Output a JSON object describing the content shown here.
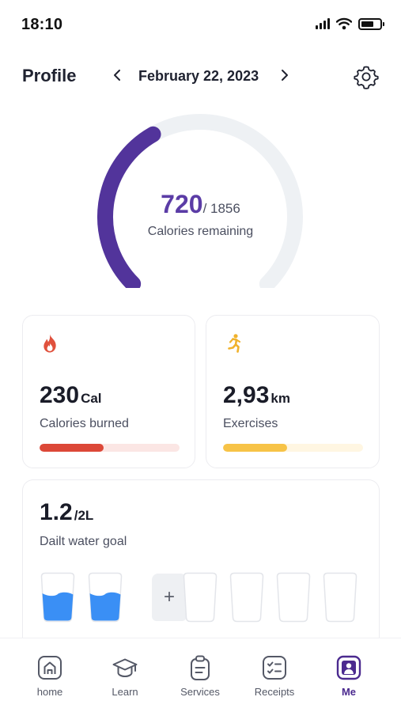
{
  "status_bar": {
    "time": "18:10"
  },
  "header": {
    "title": "Profile",
    "date": "February 22, 2023"
  },
  "calories": {
    "remaining": "720",
    "total": "/ 1856",
    "caption": "Calories remaining",
    "progress_fraction": 0.39,
    "accent": "#52349b",
    "track": "#eef1f4"
  },
  "cards": {
    "burned": {
      "value": "230",
      "unit": "Cal",
      "label": "Calories burned",
      "progress_fraction": 0.46,
      "color": "#dc4838",
      "track": "#fbe6e4",
      "icon": "flame-icon"
    },
    "exercises": {
      "value": "2,93",
      "unit": "km",
      "label": "Exercises",
      "progress_fraction": 0.46,
      "color": "#f7c347",
      "track": "#fff6e2",
      "icon": "running-icon"
    }
  },
  "water": {
    "value": "1.2",
    "unit": "/2L",
    "label": "Dailt water goal",
    "add_symbol": "+",
    "cups_filled": 2,
    "cups_empty": 4,
    "fill_color": "#3a8ff5"
  },
  "nav": {
    "items": [
      {
        "label": "home",
        "icon": "home-icon"
      },
      {
        "label": "Learn",
        "icon": "graduation-cap-icon"
      },
      {
        "label": "Services",
        "icon": "clipboard-icon"
      },
      {
        "label": "Receipts",
        "icon": "checklist-icon"
      },
      {
        "label": "Me",
        "icon": "profile-icon",
        "active": true
      }
    ]
  }
}
